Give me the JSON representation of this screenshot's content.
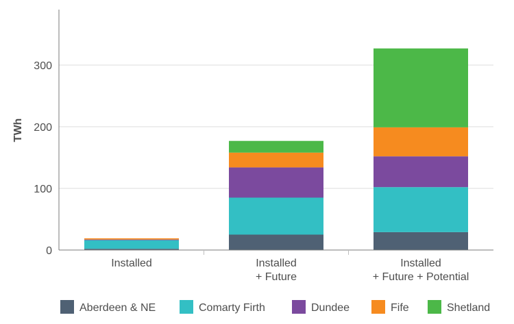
{
  "chart_data": {
    "type": "bar",
    "stacked": true,
    "title": "",
    "xlabel": "",
    "ylabel": "TWh",
    "ylim": [
      0,
      390
    ],
    "yticks": [
      0,
      100,
      200,
      300
    ],
    "grid": true,
    "legend_position": "bottom",
    "categories": [
      [
        "Installed"
      ],
      [
        "Installed",
        "+ Future"
      ],
      [
        "Installed",
        "+ Future + Potential"
      ]
    ],
    "series": [
      {
        "name": "Aberdeen & NE",
        "color": "#4f6174",
        "values": [
          2,
          25,
          29
        ]
      },
      {
        "name": "Comarty Firth",
        "color": "#33bfc4",
        "values": [
          14,
          60,
          73
        ]
      },
      {
        "name": "Dundee",
        "color": "#7b4a9e",
        "values": [
          1,
          49,
          50
        ]
      },
      {
        "name": "Fife",
        "color": "#f68b1f",
        "values": [
          2,
          24,
          47
        ]
      },
      {
        "name": "Shetland",
        "color": "#4cb848",
        "values": [
          0,
          19,
          128
        ]
      }
    ]
  }
}
